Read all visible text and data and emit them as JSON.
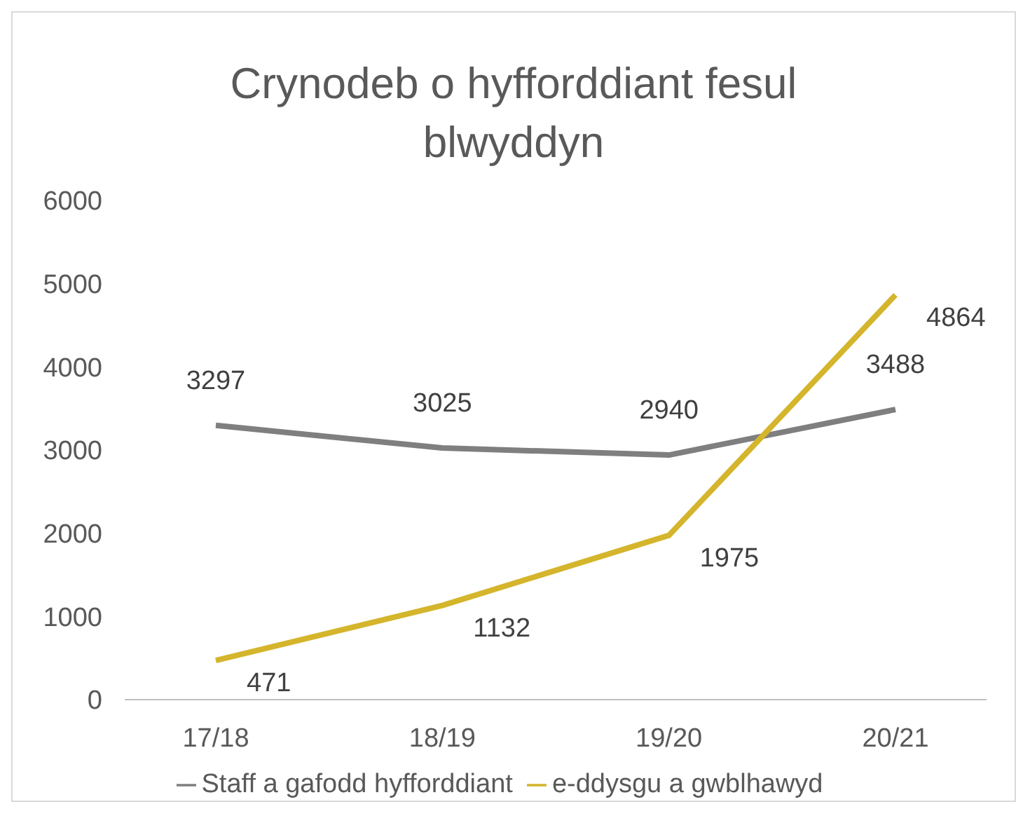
{
  "chart_data": {
    "type": "line",
    "title": "Crynodeb o hyfforddiant fesul blwyddyn",
    "categories": [
      "17/18",
      "18/19",
      "19/20",
      "20/21"
    ],
    "series": [
      {
        "name": "Staff a gafodd hyfforddiant",
        "color": "#7f7f7f",
        "values": [
          3297,
          3025,
          2940,
          3488
        ]
      },
      {
        "name": "e-ddysgu a gwblhawyd",
        "color": "#d4b52c",
        "values": [
          471,
          1132,
          1975,
          4864
        ]
      }
    ],
    "ylim": [
      0,
      6000
    ],
    "yticks": [
      0,
      1000,
      2000,
      3000,
      4000,
      5000,
      6000
    ],
    "grid": false,
    "legend": "bottom",
    "marker": "none",
    "line_style": "solid",
    "data_labels": true
  }
}
